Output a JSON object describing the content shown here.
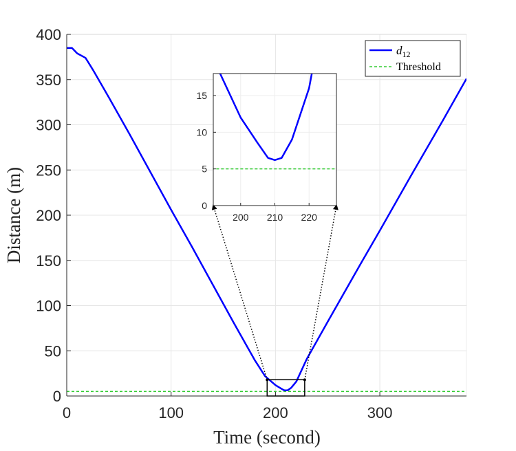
{
  "chart_data": {
    "type": "line",
    "title": "",
    "xlabel": "Time (second)",
    "ylabel": "Distance (m)",
    "xlim": [
      0,
      383
    ],
    "ylim": [
      0,
      400
    ],
    "xticks": [
      0,
      100,
      200,
      300
    ],
    "yticks": [
      0,
      50,
      100,
      150,
      200,
      250,
      300,
      350,
      400
    ],
    "grid": true,
    "legend_position": "top-right",
    "series": [
      {
        "name": "d12",
        "color": "#0000ff",
        "style": "solid",
        "x": [
          0,
          5,
          10,
          18,
          25,
          40,
          60,
          80,
          100,
          120,
          140,
          160,
          180,
          190,
          200,
          205,
          208,
          210,
          212,
          215,
          220,
          230,
          250,
          280,
          300,
          330,
          360,
          383
        ],
        "y": [
          385,
          385,
          379,
          374,
          361,
          331,
          290,
          248,
          206,
          165,
          123,
          81,
          40,
          22,
          12,
          8.5,
          6.5,
          6.2,
          6.5,
          9,
          16,
          41,
          82,
          143,
          183,
          244,
          304,
          351
        ]
      },
      {
        "name": "Threshold",
        "color": "#33cc33",
        "style": "dashed",
        "x": [
          0,
          383
        ],
        "y": [
          5,
          5
        ]
      }
    ],
    "legend": {
      "entries": [
        {
          "label_main": "d",
          "label_sub": "12",
          "color": "#0000ff",
          "style": "solid"
        },
        {
          "label_main": "Threshold",
          "label_sub": "",
          "color": "#33cc33",
          "style": "dashed"
        }
      ]
    },
    "inset": {
      "xlim": [
        192,
        228
      ],
      "ylim": [
        0,
        18
      ],
      "xticks": [
        200,
        210,
        220
      ],
      "yticks": [
        0,
        5,
        10,
        15
      ]
    }
  }
}
